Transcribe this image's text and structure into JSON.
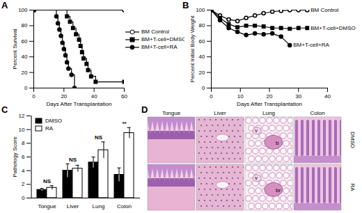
{
  "chart_data": [
    {
      "type": "step",
      "title": "A",
      "x_label": "Days After Transplantation",
      "y_label": "Percent Survival",
      "xlim": [
        0,
        60
      ],
      "xticks": [
        0,
        20,
        40,
        60
      ],
      "ylim": [
        0,
        100
      ],
      "yticks": [
        0,
        20,
        40,
        60,
        80,
        100
      ],
      "legend": "right",
      "series": [
        {
          "name": "BM Control",
          "color": "#000000",
          "marker": "circle-open",
          "x": [
            0,
            60
          ],
          "values": [
            100,
            100
          ]
        },
        {
          "name": "BM+T-cell+DMSO",
          "color": "#000000",
          "marker": "square",
          "x": [
            0,
            22,
            24,
            26,
            28,
            30,
            31,
            32,
            33,
            35,
            36,
            38,
            41,
            60
          ],
          "values": [
            100,
            92,
            85,
            77,
            69,
            62,
            54,
            46,
            38,
            31,
            23,
            15,
            8,
            8
          ]
        },
        {
          "name": "BM+T-cell+RA",
          "color": "#000000",
          "marker": "circle",
          "x": [
            0,
            15,
            16,
            17,
            18,
            19,
            20,
            21,
            22,
            23,
            25,
            27
          ],
          "values": [
            100,
            92,
            83,
            75,
            67,
            58,
            50,
            42,
            33,
            25,
            17,
            0
          ]
        }
      ]
    },
    {
      "type": "line",
      "title": "B",
      "x_label": "Days After Transplantation",
      "y_label": "Percent Initial Body Weight",
      "xlim": [
        0,
        40
      ],
      "xticks": [
        0,
        10,
        20,
        30,
        40
      ],
      "ylim": [
        0,
        100
      ],
      "yticks": [
        0,
        20,
        40,
        60,
        80,
        100
      ],
      "series": [
        {
          "name": "BM Control",
          "color": "#000000",
          "marker": "circle-open",
          "x": [
            0,
            3,
            6,
            9,
            12,
            15,
            18,
            21,
            24,
            27,
            30,
            33
          ],
          "values": [
            100,
            93,
            88,
            86,
            90,
            93,
            96,
            98,
            99,
            100,
            100,
            100
          ]
        },
        {
          "name": "BM+T-cell+DMSO",
          "color": "#000000",
          "marker": "square",
          "x": [
            0,
            3,
            6,
            9,
            12,
            15,
            18,
            21,
            24,
            27,
            30,
            33
          ],
          "values": [
            100,
            90,
            82,
            78,
            80,
            80,
            79,
            77,
            77,
            76,
            77,
            77
          ]
        },
        {
          "name": "BM+T-cell+RA",
          "color": "#000000",
          "marker": "circle",
          "x": [
            0,
            3,
            6,
            9,
            12,
            15,
            18,
            21,
            24,
            27
          ],
          "values": [
            100,
            87,
            77,
            72,
            68,
            70,
            69,
            70,
            66,
            55
          ]
        }
      ]
    },
    {
      "type": "bar",
      "title": "C",
      "y_label": "Pathology Score",
      "categories": [
        "Tongue",
        "Liver",
        "Lung",
        "Colon"
      ],
      "ylim": [
        0,
        12
      ],
      "yticks": [
        0,
        2,
        4,
        6,
        8,
        10,
        12
      ],
      "legend": "top-left",
      "series": [
        {
          "name": "DMSO",
          "color": "#000000",
          "values": [
            1.2,
            4.0,
            5.2,
            3.4
          ],
          "errors": [
            0.2,
            1.0,
            0.8,
            1.0
          ]
        },
        {
          "name": "RA",
          "color": "#ffffff",
          "values": [
            1.5,
            4.3,
            7.0,
            9.5
          ],
          "errors": [
            0.3,
            0.5,
            1.2,
            0.8
          ]
        }
      ],
      "significance": [
        "NS",
        "NS",
        "NS",
        "**"
      ]
    }
  ],
  "image_panel": {
    "title": "D",
    "columns": [
      "Tongue",
      "Liver",
      "Lung",
      "Colon"
    ],
    "rows": [
      "DMSO",
      "RA"
    ],
    "annotations": [
      {
        "row": 0,
        "column": 2,
        "text": "v"
      },
      {
        "row": 0,
        "column": 2,
        "text": "b"
      },
      {
        "row": 1,
        "column": 2,
        "text": "v"
      },
      {
        "row": 1,
        "column": 2,
        "text": "br"
      }
    ]
  }
}
